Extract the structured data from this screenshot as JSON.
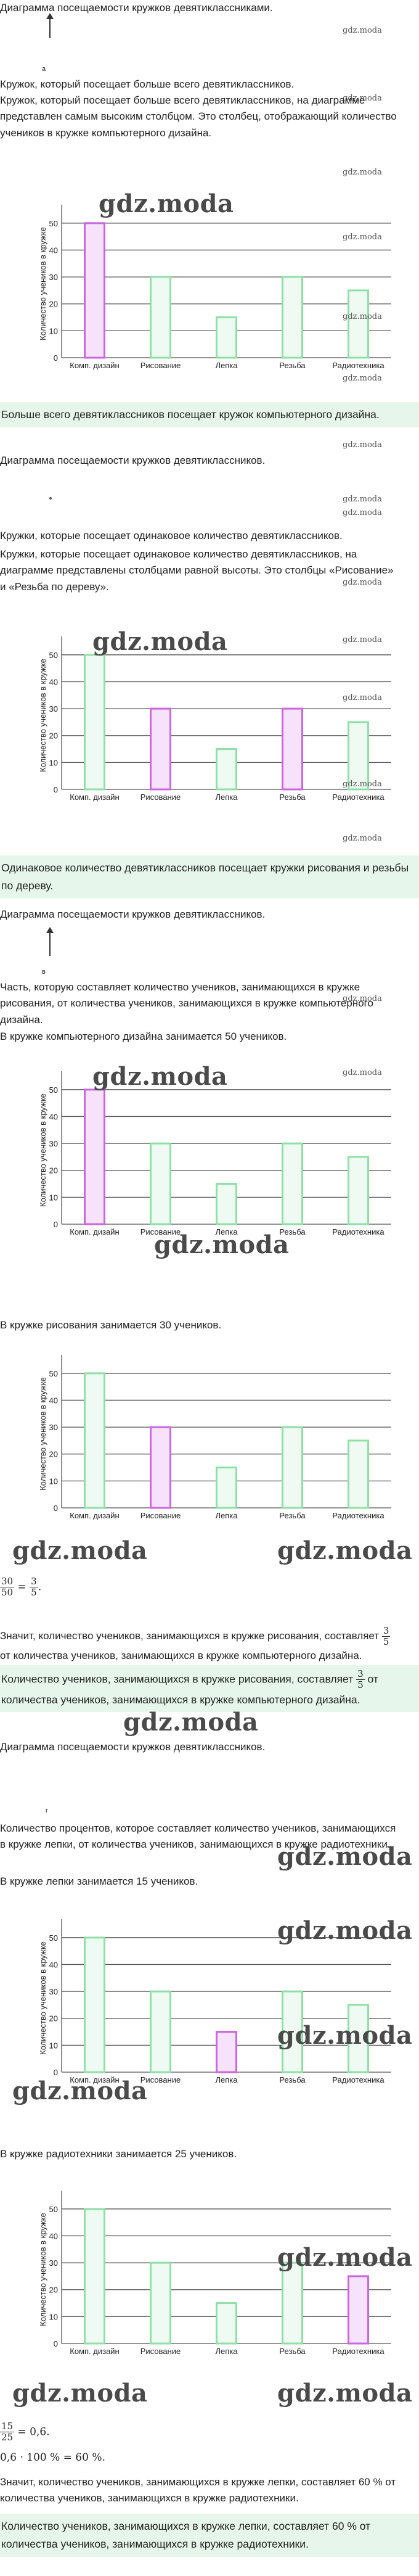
{
  "watermark": {
    "big": "gdz.moda",
    "small": "gdz.moda"
  },
  "chart_data": {
    "type": "bar",
    "categories": [
      "Комп. дизайн",
      "Рисование",
      "Лепка",
      "Резьба",
      "Радиотехника"
    ],
    "values": [
      50,
      30,
      15,
      30,
      25
    ],
    "ylabel": "Количество учеников в кружке",
    "xlabel": "",
    "yticks": [
      0,
      10,
      20,
      30,
      40,
      50
    ],
    "ylim": [
      0,
      55
    ],
    "grid": true,
    "colors": {
      "bar_stroke": "#8ee0a6",
      "bar_fill": "#effaf2",
      "hl_stroke": "#cc66e0",
      "hl_fill": "#f6e2fb",
      "grid": "#555555",
      "answer_bg": "#e6f6ea"
    }
  },
  "charts": [
    {
      "highlight": [
        0
      ]
    },
    {
      "highlight": [
        1,
        3
      ]
    },
    {
      "highlight": [
        0
      ]
    },
    {
      "highlight": [
        1
      ]
    },
    {
      "highlight": [
        2
      ]
    },
    {
      "highlight": [
        4
      ]
    }
  ],
  "s1": {
    "heading": "Диаграмма посещаемости кружков девятиклассниками.",
    "marker": "a",
    "q": "Кружок, который посещает больше всего девятиклассников.",
    "p": "Кружок, который посещает больше всего девятиклассников, на диаграмме представлен самым высоким столбцом. Это столбец, отображающий количество учеников в кружке компьютерного дизайна.",
    "answer": "Больше всего девятиклассников посещает кружок компьютерного дизайна."
  },
  "s2": {
    "heading": "Диаграмма посещаемости кружков девятиклассников.",
    "marker": "б",
    "q": "Кружки, которые посещает одинаковое количество девятиклассников.",
    "p": "Кружки, которые посещает одинаковое количество девятиклассников, на диаграмме представлены столбцами равной высоты. Это столбцы «Рисование» и «Резьба по дереву».",
    "answer": "Одинаковое количество девятиклассников посещает кружки рисования и резьбы по дереву."
  },
  "s3": {
    "heading": "Диаграмма посещаемости кружков девятиклассников.",
    "marker": "в",
    "q": "Часть, которую составляет количество учеников, занимающихся в кружке рисования, от количества учеников, занимающихся в кружке компьютерного дизайна.",
    "l1": "В кружке компьютерного дизайна занимается 50 учеников.",
    "l2": "В кружке рисования занимается 30 учеников.",
    "calc": {
      "n1": "30",
      "d1": "50",
      "eq": "=",
      "n2": "3",
      "d2": "5",
      "end": "."
    },
    "concl_pre": "Значит, количество учеников, занимающихся в кружке рисования, составляет",
    "concl_n": "3",
    "concl_d": "5",
    "concl_post": "от количества учеников, занимающихся в кружке компьютерного дизайна.",
    "answer_pre": "Количество учеников, занимающихся в кружке рисования, составляет",
    "answer_n": "3",
    "answer_d": "5",
    "answer_post": "от количества учеников, занимающихся в кружке компьютерного дизайна."
  },
  "s4": {
    "heading": "Диаграмма посещаемости кружков девятиклассников.",
    "marker": "г",
    "q": "Количество процентов, которое составляет количество учеников, занимающихся в кружке лепки, от количества учеников, занимающихся в кружке радиотехники.",
    "l1": "В кружке лепки занимается 15 учеников.",
    "l2": "В кружке радиотехники занимается 25 учеников.",
    "calc1": {
      "n": "15",
      "d": "25",
      "rest": "= 0,6."
    },
    "calc2": "0,6 · 100 % = 60 %.",
    "concl": "Значит, количество учеников, занимающихся в кружке лепки, составляет 60 % от количества учеников, занимающихся в кружке радиотехники.",
    "answer": "Количество учеников, занимающихся в кружке лепки, составляет 60 % от количества учеников, занимающихся в кружке радиотехники."
  }
}
